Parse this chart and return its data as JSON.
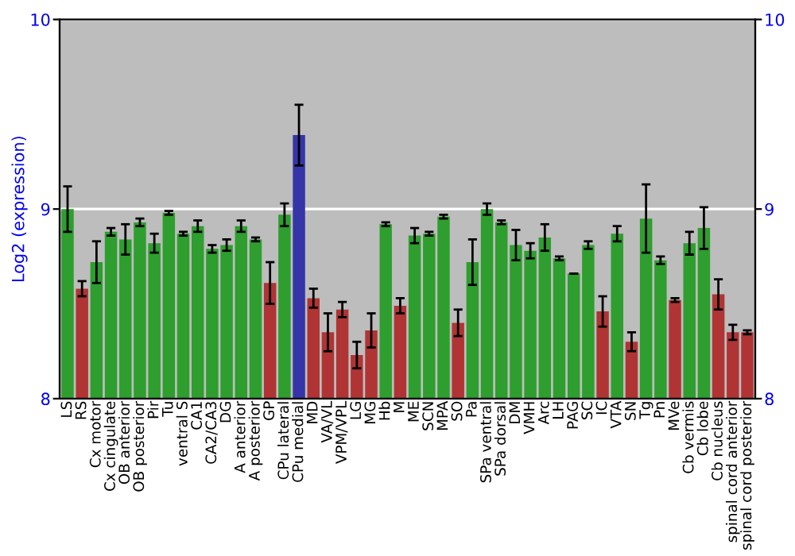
{
  "chart_data": {
    "type": "bar",
    "ylabel": "Log2 (expression)",
    "categories": [
      "LS",
      "RS",
      "Cx motor",
      "Cx cingulate",
      "OB anterior",
      "OB posterior",
      "Pir",
      "Tu",
      "ventral S",
      "CA1",
      "CA2/CA3",
      "DG",
      "A anterior",
      "A posterior",
      "GP",
      "CPu lateral",
      "CPu medial",
      "MD",
      "VA/VL",
      "VPM/VPL",
      "LG",
      "MG",
      "Hb",
      "M",
      "ME",
      "SCN",
      "MPA",
      "SO",
      "Pa",
      "SPa ventral",
      "SPa dorsal",
      "DM",
      "VMH",
      "Arc",
      "LH",
      "PAG",
      "SC",
      "IC",
      "VTA",
      "SN",
      "Tg",
      "Pn",
      "MVe",
      "Cb vermis",
      "Cb lobe",
      "Cb nucleus",
      "spinal cord anterior",
      "spinal cord posterior"
    ],
    "values": [
      9.0,
      8.58,
      8.72,
      8.88,
      8.84,
      8.93,
      8.82,
      8.98,
      8.87,
      8.91,
      8.79,
      8.81,
      8.91,
      8.84,
      8.61,
      8.97,
      9.39,
      8.53,
      8.35,
      8.47,
      8.23,
      8.36,
      8.92,
      8.49,
      8.86,
      8.87,
      8.96,
      8.4,
      8.72,
      9.0,
      8.93,
      8.81,
      8.78,
      8.85,
      8.74,
      8.66,
      8.81,
      8.46,
      8.87,
      8.3,
      8.95,
      8.73,
      8.52,
      8.82,
      8.9,
      8.55,
      8.35,
      8.35
    ],
    "errors": [
      0.12,
      0.04,
      0.11,
      0.02,
      0.08,
      0.02,
      0.05,
      0.01,
      0.01,
      0.03,
      0.02,
      0.03,
      0.03,
      0.01,
      0.11,
      0.06,
      0.16,
      0.05,
      0.1,
      0.04,
      0.07,
      0.09,
      0.01,
      0.04,
      0.04,
      0.01,
      0.01,
      0.07,
      0.12,
      0.03,
      0.01,
      0.08,
      0.04,
      0.07,
      0.01,
      null,
      0.02,
      0.08,
      0.04,
      0.05,
      0.18,
      0.02,
      0.01,
      0.06,
      0.11,
      0.08,
      0.04,
      0.01
    ],
    "colors": [
      "#2e9e2e",
      "#b03434",
      "#2e9e2e",
      "#2e9e2e",
      "#2e9e2e",
      "#2e9e2e",
      "#2e9e2e",
      "#2e9e2e",
      "#2e9e2e",
      "#2e9e2e",
      "#2e9e2e",
      "#2e9e2e",
      "#2e9e2e",
      "#2e9e2e",
      "#b03434",
      "#2e9e2e",
      "#3535a8",
      "#b03434",
      "#b03434",
      "#b03434",
      "#b03434",
      "#b03434",
      "#2e9e2e",
      "#b03434",
      "#2e9e2e",
      "#2e9e2e",
      "#2e9e2e",
      "#b03434",
      "#2e9e2e",
      "#2e9e2e",
      "#2e9e2e",
      "#2e9e2e",
      "#2e9e2e",
      "#2e9e2e",
      "#2e9e2e",
      "#2e9e2e",
      "#2e9e2e",
      "#b03434",
      "#2e9e2e",
      "#b03434",
      "#2e9e2e",
      "#2e9e2e",
      "#b03434",
      "#2e9e2e",
      "#2e9e2e",
      "#b03434",
      "#b03434",
      "#b03434"
    ],
    "ylim": [
      8,
      10
    ],
    "yticks": [
      8,
      9,
      10
    ],
    "y2lim": [
      8,
      10
    ],
    "y2ticks": [
      8,
      9,
      10
    ],
    "grid": "y"
  }
}
